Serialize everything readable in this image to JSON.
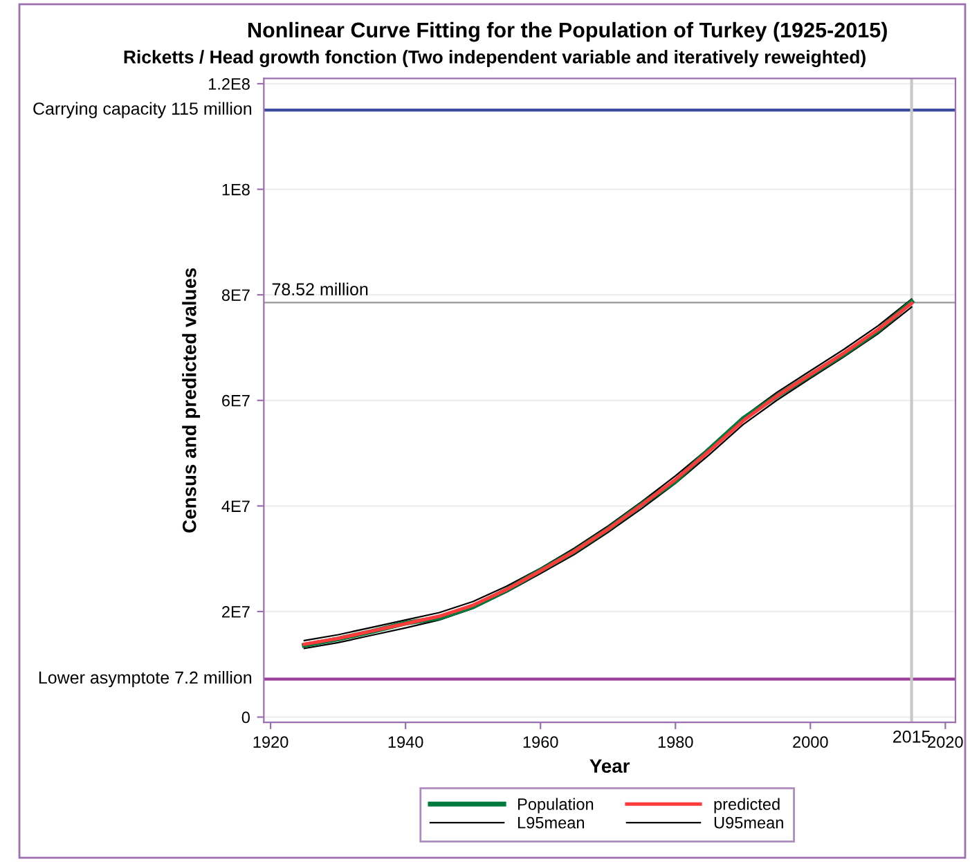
{
  "chart_data": {
    "type": "line",
    "title": "Nonlinear Curve Fitting for the Population of Turkey (1925-2015)",
    "subtitle": "Ricketts / Head growth fonction (Two independent variable and iteratively reweighted)",
    "xlabel": "Year",
    "ylabel": "Census and predicted values",
    "x": [
      1925,
      1930,
      1935,
      1940,
      1945,
      1950,
      1955,
      1960,
      1965,
      1970,
      1975,
      1980,
      1985,
      1990,
      1995,
      2000,
      2005,
      2010,
      2015
    ],
    "series": [
      {
        "name": "Population",
        "color": "#007a3d",
        "values": [
          13600000,
          14800000,
          16200000,
          17800000,
          18800000,
          20900000,
          24100000,
          27800000,
          31400000,
          35600000,
          40300000,
          44700000,
          50700000,
          56500000,
          60800000,
          64800000,
          68800000,
          73200000,
          78700000
        ]
      },
      {
        "name": "predicted",
        "color": "#ff3b3b",
        "values": [
          13800000,
          14900000,
          16300000,
          17700000,
          19100000,
          21200000,
          24200000,
          27700000,
          31400000,
          35600000,
          40200000,
          45000000,
          50400000,
          56100000,
          60800000,
          64900000,
          69000000,
          73400000,
          78400000
        ]
      },
      {
        "name": "L95mean",
        "color": "#000000",
        "values": [
          13000000,
          14100000,
          15500000,
          16900000,
          18400000,
          20600000,
          23700000,
          27200000,
          30800000,
          35000000,
          39500000,
          44300000,
          49700000,
          55400000,
          60000000,
          64200000,
          68300000,
          72600000,
          77700000
        ]
      },
      {
        "name": "U95mean",
        "color": "#000000",
        "values": [
          14500000,
          15600000,
          17000000,
          18400000,
          19800000,
          21900000,
          24800000,
          28200000,
          32000000,
          36200000,
          40800000,
          45700000,
          51000000,
          56800000,
          61500000,
          65600000,
          69700000,
          74100000,
          79200000
        ]
      }
    ],
    "xlim": [
      1919,
      2021.5
    ],
    "xticks": [
      1920,
      1940,
      1960,
      1980,
      2000,
      2020
    ],
    "ylim": [
      -1000000,
      121000000
    ],
    "yticks": [
      0,
      {
        "value": 20000000,
        "label": "2E7"
      },
      {
        "value": 40000000,
        "label": "4E7"
      },
      {
        "value": 60000000,
        "label": "6E7"
      },
      {
        "value": 80000000,
        "label": "8E7"
      },
      {
        "value": 100000000,
        "label": "1E8"
      },
      {
        "value": 120000000,
        "label": "1.2E8"
      }
    ],
    "ref_lines": [
      {
        "axis": "y",
        "value": 115000000,
        "label": "Carrying capacity 115 million",
        "color": "#3b4ba0"
      },
      {
        "axis": "y",
        "value": 78520000,
        "label": "78.52 million",
        "color": "#999999"
      },
      {
        "axis": "y",
        "value": 7200000,
        "label": "Lower asymptote 7.2 million",
        "color": "#9b3f9b"
      },
      {
        "axis": "x",
        "value": 2015,
        "label": "2015",
        "color": "#c8c8c8"
      }
    ],
    "grid": "y",
    "legend": "bottom",
    "line_style": "solid",
    "marker": "none"
  }
}
